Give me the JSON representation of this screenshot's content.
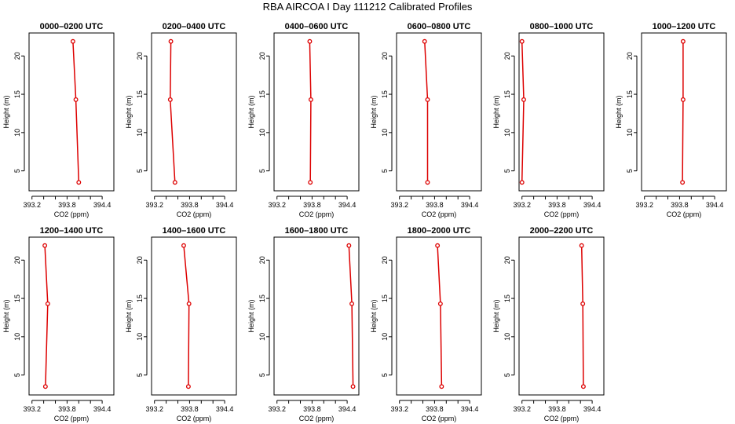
{
  "title": "RBA AIRCOA I  Day 111212  Calibrated Profiles",
  "colors": {
    "series": "#dd0000",
    "axis": "#000000"
  },
  "chart_data": [
    {
      "type": "line",
      "title": "0000–0200 UTC",
      "xlabel": "CO2 (ppm)",
      "ylabel": "Height (m)",
      "x": [
        394.0,
        393.95,
        393.9
      ],
      "y": [
        3.5,
        14.3,
        21.9
      ],
      "xlim": [
        393.15,
        394.6
      ],
      "ylim": [
        2.4,
        23.0
      ],
      "xticks": [
        "393.2",
        "393.8",
        "394.4"
      ],
      "yticks": [
        "5",
        "10",
        "15",
        "20"
      ]
    },
    {
      "type": "line",
      "title": "0200–0400 UTC",
      "xlabel": "CO2 (ppm)",
      "ylabel": "Height (m)",
      "x": [
        393.55,
        393.47,
        393.48
      ],
      "y": [
        3.5,
        14.3,
        21.9
      ],
      "xlim": [
        393.15,
        394.6
      ],
      "ylim": [
        2.4,
        23.0
      ],
      "xticks": [
        "393.2",
        "393.8",
        "394.4"
      ],
      "yticks": [
        "5",
        "10",
        "15",
        "20"
      ]
    },
    {
      "type": "line",
      "title": "0400–0600 UTC",
      "xlabel": "CO2 (ppm)",
      "ylabel": "Height (m)",
      "x": [
        393.77,
        393.78,
        393.76
      ],
      "y": [
        3.5,
        14.3,
        21.9
      ],
      "xlim": [
        393.15,
        394.6
      ],
      "ylim": [
        2.4,
        23.0
      ],
      "xticks": [
        "393.2",
        "393.8",
        "394.4"
      ],
      "yticks": [
        "5",
        "10",
        "15",
        "20"
      ]
    },
    {
      "type": "line",
      "title": "0600–0800 UTC",
      "xlabel": "CO2 (ppm)",
      "ylabel": "Height (m)",
      "x": [
        393.68,
        393.68,
        393.63
      ],
      "y": [
        3.5,
        14.3,
        21.9
      ],
      "xlim": [
        393.15,
        394.6
      ],
      "ylim": [
        2.4,
        23.0
      ],
      "xticks": [
        "393.2",
        "393.8",
        "394.4"
      ],
      "yticks": [
        "5",
        "10",
        "15",
        "20"
      ]
    },
    {
      "type": "line",
      "title": "0800–1000 UTC",
      "xlabel": "CO2 (ppm)",
      "ylabel": "Height (m)",
      "x": [
        393.2,
        393.23,
        393.2
      ],
      "y": [
        3.5,
        14.3,
        21.9
      ],
      "xlim": [
        393.15,
        394.6
      ],
      "ylim": [
        2.4,
        23.0
      ],
      "xticks": [
        "393.2",
        "393.8",
        "394.4"
      ],
      "yticks": [
        "5",
        "10",
        "15",
        "20"
      ]
    },
    {
      "type": "line",
      "title": "1000–1200 UTC",
      "xlabel": "CO2 (ppm)",
      "ylabel": "Height (m)",
      "x": [
        393.85,
        393.86,
        393.86
      ],
      "y": [
        3.5,
        14.3,
        21.9
      ],
      "xlim": [
        393.15,
        394.6
      ],
      "ylim": [
        2.4,
        23.0
      ],
      "xticks": [
        "393.2",
        "393.8",
        "394.4"
      ],
      "yticks": [
        "5",
        "10",
        "15",
        "20"
      ]
    },
    {
      "type": "line",
      "title": "1200–1400 UTC",
      "xlabel": "CO2 (ppm)",
      "ylabel": "Height (m)",
      "x": [
        393.43,
        393.47,
        393.42
      ],
      "y": [
        3.5,
        14.3,
        21.9
      ],
      "xlim": [
        393.15,
        394.6
      ],
      "ylim": [
        2.4,
        23.0
      ],
      "xticks": [
        "393.2",
        "393.8",
        "394.4"
      ],
      "yticks": [
        "5",
        "10",
        "15",
        "20"
      ]
    },
    {
      "type": "line",
      "title": "1400–1600 UTC",
      "xlabel": "CO2 (ppm)",
      "ylabel": "Height (m)",
      "x": [
        393.78,
        393.79,
        393.7
      ],
      "y": [
        3.5,
        14.3,
        21.9
      ],
      "xlim": [
        393.15,
        394.6
      ],
      "ylim": [
        2.4,
        23.0
      ],
      "xticks": [
        "393.2",
        "393.8",
        "394.4"
      ],
      "yticks": [
        "5",
        "10",
        "15",
        "20"
      ]
    },
    {
      "type": "line",
      "title": "1600–1800 UTC",
      "xlabel": "CO2 (ppm)",
      "ylabel": "Height (m)",
      "x": [
        394.5,
        394.48,
        394.43
      ],
      "y": [
        3.5,
        14.3,
        21.9
      ],
      "xlim": [
        393.15,
        394.6
      ],
      "ylim": [
        2.4,
        23.0
      ],
      "xticks": [
        "393.2",
        "393.8",
        "394.4"
      ],
      "yticks": [
        "5",
        "10",
        "15",
        "20"
      ]
    },
    {
      "type": "line",
      "title": "1800–2000 UTC",
      "xlabel": "CO2 (ppm)",
      "ylabel": "Height (m)",
      "x": [
        393.92,
        393.9,
        393.85
      ],
      "y": [
        3.5,
        14.3,
        21.9
      ],
      "xlim": [
        393.15,
        394.6
      ],
      "ylim": [
        2.4,
        23.0
      ],
      "xticks": [
        "393.2",
        "393.8",
        "394.4"
      ],
      "yticks": [
        "5",
        "10",
        "15",
        "20"
      ]
    },
    {
      "type": "line",
      "title": "2000–2200 UTC",
      "xlabel": "CO2 (ppm)",
      "ylabel": "Height (m)",
      "x": [
        394.25,
        394.24,
        394.22
      ],
      "y": [
        3.5,
        14.3,
        21.9
      ],
      "xlim": [
        393.15,
        394.6
      ],
      "ylim": [
        2.4,
        23.0
      ],
      "xticks": [
        "393.2",
        "393.8",
        "394.4"
      ],
      "yticks": [
        "5",
        "10",
        "15",
        "20"
      ]
    }
  ]
}
